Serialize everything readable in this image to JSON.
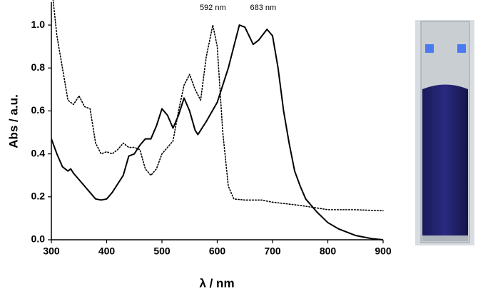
{
  "chart_data": {
    "type": "line",
    "xlabel": "λ / nm",
    "ylabel": "Abs / a.u.",
    "xlim": [
      300,
      900
    ],
    "xticks": [
      300,
      400,
      500,
      600,
      700,
      800,
      900
    ],
    "ylim": [
      0,
      1.1
    ],
    "yticks": [
      {
        "value": 0,
        "label": "0.0"
      },
      {
        "value": 0.2,
        "label": "0.2"
      },
      {
        "value": 0.4,
        "label": "0.4"
      },
      {
        "value": 0.6,
        "label": "0.6"
      },
      {
        "value": 0.8,
        "label": "0.8"
      },
      {
        "value": 1.0,
        "label": "1.0"
      }
    ],
    "series": [
      {
        "color": "#000000",
        "line_style": "solid",
        "x": [
          300,
          310,
          320,
          330,
          335,
          340,
          350,
          360,
          370,
          380,
          390,
          400,
          410,
          420,
          430,
          440,
          450,
          460,
          470,
          480,
          490,
          500,
          510,
          520,
          530,
          540,
          550,
          560,
          565,
          580,
          600,
          620,
          640,
          650,
          665,
          675,
          690,
          700,
          710,
          720,
          730,
          740,
          750,
          760,
          780,
          800,
          820,
          850,
          880,
          900
        ],
        "values": [
          0.47,
          0.4,
          0.34,
          0.32,
          0.33,
          0.31,
          0.28,
          0.25,
          0.22,
          0.19,
          0.185,
          0.19,
          0.22,
          0.26,
          0.3,
          0.39,
          0.4,
          0.44,
          0.47,
          0.47,
          0.53,
          0.61,
          0.58,
          0.52,
          0.58,
          0.66,
          0.6,
          0.51,
          0.49,
          0.55,
          0.64,
          0.8,
          1.0,
          0.99,
          0.91,
          0.93,
          0.98,
          0.95,
          0.8,
          0.6,
          0.45,
          0.32,
          0.25,
          0.19,
          0.13,
          0.08,
          0.05,
          0.02,
          0.005,
          0.0
        ]
      },
      {
        "color": "#000000",
        "line_style": "dotted",
        "x": [
          303,
          310,
          320,
          330,
          340,
          350,
          360,
          370,
          380,
          390,
          400,
          410,
          420,
          430,
          440,
          450,
          460,
          470,
          480,
          490,
          500,
          510,
          520,
          530,
          540,
          550,
          560,
          570,
          580,
          592,
          600,
          610,
          620,
          630,
          650,
          680,
          700,
          750,
          800,
          850,
          900
        ],
        "values": [
          1.12,
          0.95,
          0.8,
          0.65,
          0.63,
          0.67,
          0.62,
          0.61,
          0.45,
          0.4,
          0.41,
          0.4,
          0.42,
          0.45,
          0.43,
          0.43,
          0.42,
          0.33,
          0.3,
          0.33,
          0.4,
          0.43,
          0.46,
          0.6,
          0.72,
          0.77,
          0.7,
          0.65,
          0.85,
          1.0,
          0.9,
          0.5,
          0.25,
          0.19,
          0.185,
          0.185,
          0.175,
          0.16,
          0.14,
          0.14,
          0.135
        ]
      }
    ],
    "annotations": [
      {
        "text": "592 nm",
        "x": 592,
        "y": 1.04
      },
      {
        "text": "683 nm",
        "x": 683,
        "y": 1.04
      }
    ]
  }
}
